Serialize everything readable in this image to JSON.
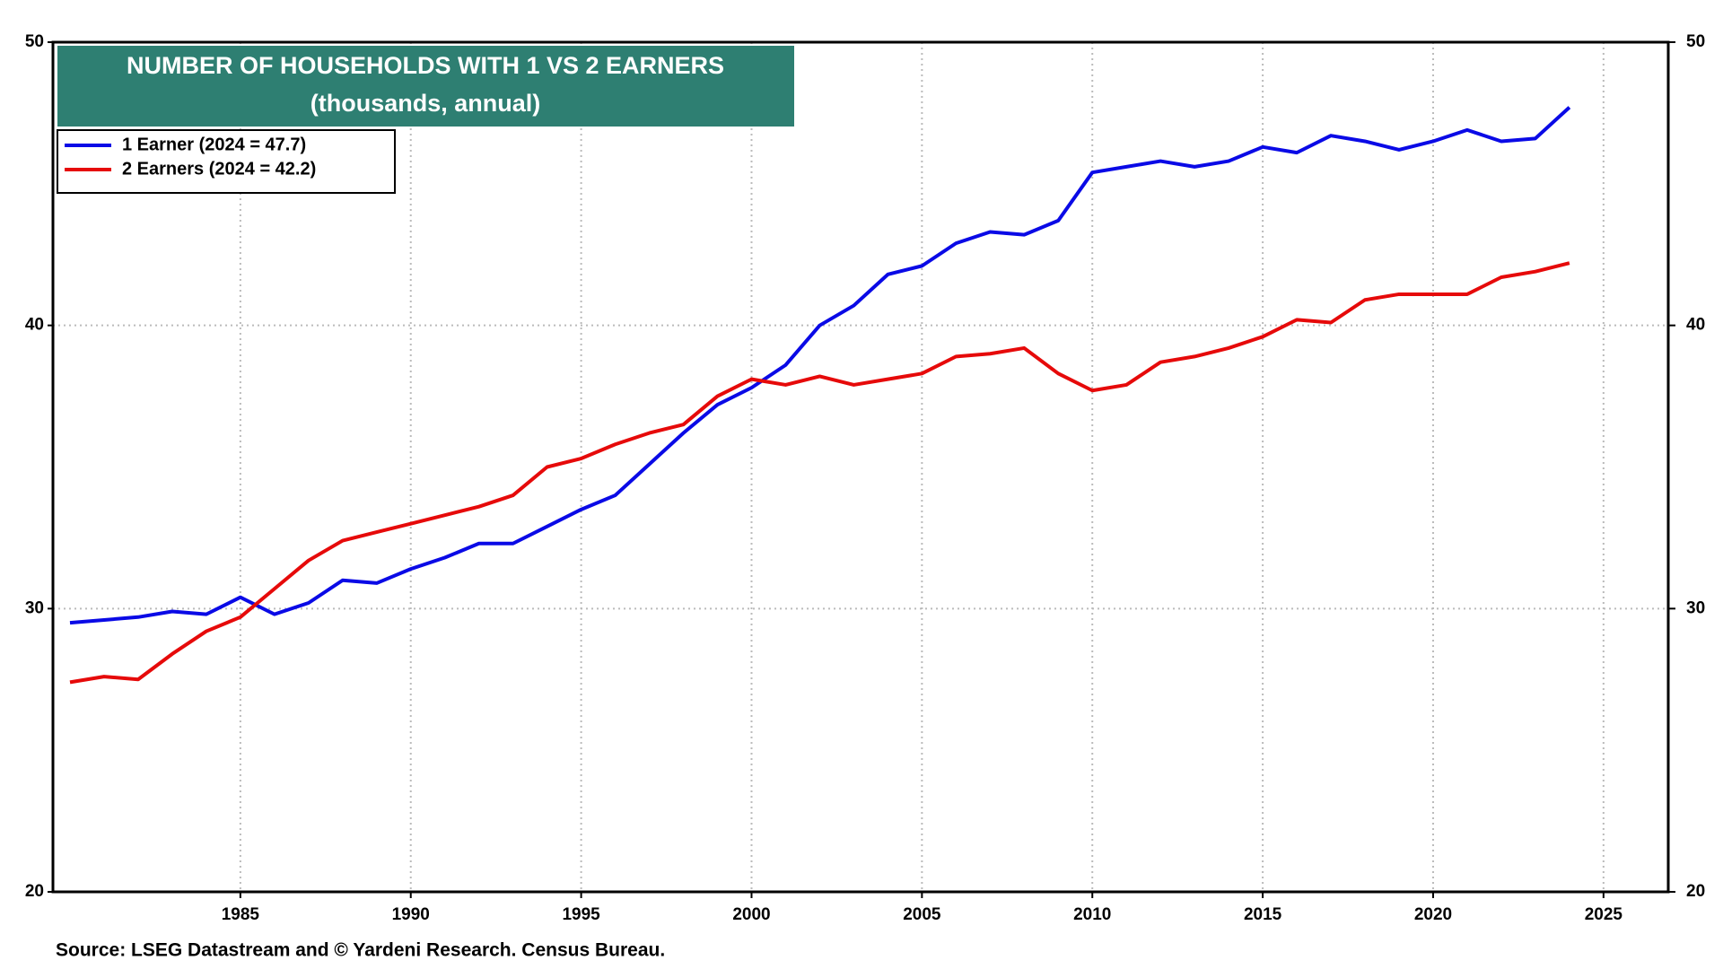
{
  "chart_data": {
    "type": "line",
    "title": "NUMBER OF HOUSEHOLDS WITH 1 VS 2 EARNERS",
    "subtitle": "(thousands, annual)",
    "source": "Source: LSEG Datastream and © Yardeni Research. Census Bureau.",
    "x": [
      1980,
      1981,
      1982,
      1983,
      1984,
      1985,
      1986,
      1987,
      1988,
      1989,
      1990,
      1991,
      1992,
      1993,
      1994,
      1995,
      1996,
      1997,
      1998,
      1999,
      2000,
      2001,
      2002,
      2003,
      2004,
      2005,
      2006,
      2007,
      2008,
      2009,
      2010,
      2011,
      2012,
      2013,
      2014,
      2015,
      2016,
      2017,
      2018,
      2019,
      2020,
      2021,
      2022,
      2023,
      2024
    ],
    "series": [
      {
        "name": "1 Earner (2024 = 47.7)",
        "color": "#0a0ae6",
        "values": [
          29.5,
          29.6,
          29.7,
          29.9,
          29.8,
          30.4,
          29.8,
          30.2,
          31.0,
          30.9,
          31.4,
          31.8,
          32.3,
          32.3,
          32.9,
          33.5,
          34.0,
          35.1,
          36.2,
          37.2,
          37.8,
          38.6,
          40.0,
          40.7,
          41.8,
          42.1,
          42.9,
          43.3,
          43.2,
          43.7,
          45.4,
          45.6,
          45.8,
          45.6,
          45.8,
          46.3,
          46.1,
          46.7,
          46.5,
          46.2,
          46.5,
          46.9,
          46.5,
          46.6,
          47.7
        ]
      },
      {
        "name": "2 Earners (2024 = 42.2)",
        "color": "#e60a0a",
        "values": [
          27.4,
          27.6,
          27.5,
          28.4,
          29.2,
          29.7,
          30.7,
          31.7,
          32.4,
          32.7,
          33.0,
          33.3,
          33.6,
          34.0,
          35.0,
          35.3,
          35.8,
          36.2,
          36.5,
          37.5,
          38.1,
          37.9,
          38.2,
          37.9,
          38.1,
          38.3,
          38.9,
          39.0,
          39.2,
          38.3,
          37.7,
          37.9,
          38.7,
          38.9,
          39.2,
          39.6,
          40.2,
          40.1,
          40.9,
          41.1,
          41.1,
          41.1,
          41.7,
          41.9,
          42.2
        ]
      }
    ],
    "xlim": [
      1979.5,
      2026.9
    ],
    "xticks": [
      1985,
      1990,
      1995,
      2000,
      2005,
      2010,
      2015,
      2020,
      2025
    ],
    "ylim": [
      20,
      50
    ],
    "yticks": [
      20,
      30,
      40,
      50
    ],
    "y2lim": [
      20,
      50
    ],
    "y2ticks": [
      20,
      30,
      40,
      50
    ],
    "grid": true,
    "legend": "top-left"
  }
}
